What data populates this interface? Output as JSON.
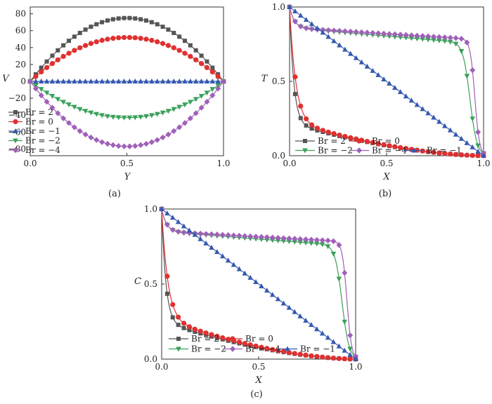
{
  "chart_data": [
    {
      "type": "line",
      "caption": "(a)",
      "xlabel": "Y",
      "ylabel": "V",
      "xlim": [
        0,
        1
      ],
      "ylim": [
        -88,
        88
      ],
      "xticks": [
        "0.0",
        "0.5",
        "1.0"
      ],
      "yticks": [
        "80",
        "60",
        "40",
        "20",
        "0",
        "−20",
        "−40",
        "−60",
        "−80"
      ],
      "legend": "bottom-left",
      "series": [
        {
          "name": "Br = 2",
          "color": "#555555",
          "marker": "square",
          "kind": "parabola",
          "peak": 75
        },
        {
          "name": "Br = 0",
          "color": "#e03030",
          "marker": "circle",
          "kind": "parabola",
          "peak": 52
        },
        {
          "name": "Br = −1",
          "color": "#3558b0",
          "marker": "triangle-up",
          "kind": "parabola",
          "peak": 0
        },
        {
          "name": "Br = −2",
          "color": "#3aa05a",
          "marker": "triangle-down",
          "kind": "parabola",
          "peak": -43
        },
        {
          "name": "Br = −4",
          "color": "#a060b8",
          "marker": "diamond",
          "kind": "parabola",
          "peak": -77
        }
      ]
    },
    {
      "type": "line",
      "caption": "(b)",
      "xlabel": "X",
      "ylabel": "T",
      "xlim": [
        0,
        1
      ],
      "ylim": [
        0,
        1
      ],
      "xticks": [
        "0.0",
        "0.5",
        "1.0"
      ],
      "yticks": [
        "1.0",
        "0.5",
        "0.0"
      ],
      "legend": "bottom-left",
      "series": [
        {
          "name": "Br = 2",
          "color": "#555555",
          "marker": "square",
          "kind": "drop",
          "drop": 0.78,
          "k": 45,
          "alpha": 1.7
        },
        {
          "name": "Br = 0",
          "color": "#e03030",
          "marker": "circle",
          "kind": "drop",
          "drop": 0.77,
          "k": 30,
          "alpha": 1.7
        },
        {
          "name": "Br = −2",
          "color": "#3aa05a",
          "marker": "triangle-down",
          "kind": "plateau",
          "drop": 0.14,
          "k": 40,
          "h": 0.11,
          "x0": 0.93,
          "w": 0.018
        },
        {
          "name": "Br = −4",
          "color": "#a060b8",
          "marker": "diamond",
          "kind": "plateau",
          "drop": 0.14,
          "k": 40,
          "h": 0.08,
          "x0": 0.955,
          "w": 0.012
        },
        {
          "name": "Br = −1",
          "color": "#3558b0",
          "marker": "triangle-up",
          "kind": "linear"
        }
      ]
    },
    {
      "type": "line",
      "caption": "(c)",
      "xlabel": "X",
      "ylabel": "C",
      "xlim": [
        0,
        1
      ],
      "ylim": [
        0,
        1
      ],
      "xticks": [
        "0.0",
        "0.5",
        "1.0"
      ],
      "yticks": [
        "1.0",
        "0.5",
        "0.0"
      ],
      "legend": "bottom-left",
      "series": [
        {
          "name": "Br = 2",
          "color": "#555555",
          "marker": "square",
          "kind": "drop",
          "drop": 0.75,
          "k": 45,
          "alpha": 1.7
        },
        {
          "name": "Br = 0",
          "color": "#e03030",
          "marker": "circle",
          "kind": "drop",
          "drop": 0.73,
          "k": 30,
          "alpha": 1.7
        },
        {
          "name": "Br = −2",
          "color": "#3aa05a",
          "marker": "triangle-down",
          "kind": "plateau",
          "drop": 0.15,
          "k": 40,
          "h": 0.1,
          "x0": 0.93,
          "w": 0.018
        },
        {
          "name": "Br = −4",
          "color": "#a060b8",
          "marker": "diamond",
          "kind": "plateau",
          "drop": 0.15,
          "k": 40,
          "h": 0.07,
          "x0": 0.955,
          "w": 0.012
        },
        {
          "name": "Br = −1",
          "color": "#3558b0",
          "marker": "triangle-up",
          "kind": "linear"
        }
      ]
    }
  ]
}
